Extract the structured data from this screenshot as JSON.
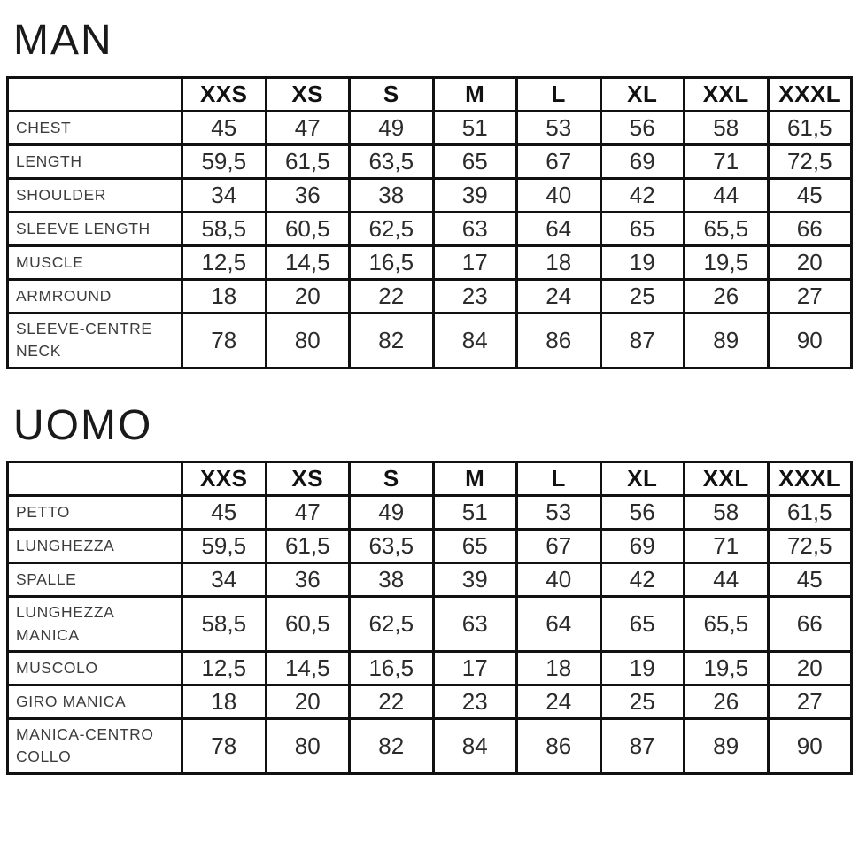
{
  "sizes": [
    "XXS",
    "XS",
    "S",
    "M",
    "L",
    "XL",
    "XXL",
    "XXXL"
  ],
  "tables": [
    {
      "title": "MAN",
      "rows": [
        {
          "label": "CHEST",
          "values": [
            "45",
            "47",
            "49",
            "51",
            "53",
            "56",
            "58",
            "61,5"
          ]
        },
        {
          "label": "LENGTH",
          "values": [
            "59,5",
            "61,5",
            "63,5",
            "65",
            "67",
            "69",
            "71",
            "72,5"
          ]
        },
        {
          "label": "SHOULDER",
          "values": [
            "34",
            "36",
            "38",
            "39",
            "40",
            "42",
            "44",
            "45"
          ]
        },
        {
          "label": "SLEEVE LENGTH",
          "values": [
            "58,5",
            "60,5",
            "62,5",
            "63",
            "64",
            "65",
            "65,5",
            "66"
          ]
        },
        {
          "label": "MUSCLE",
          "values": [
            "12,5",
            "14,5",
            "16,5",
            "17",
            "18",
            "19",
            "19,5",
            "20"
          ]
        },
        {
          "label": "ARMROUND",
          "values": [
            "18",
            "20",
            "22",
            "23",
            "24",
            "25",
            "26",
            "27"
          ]
        },
        {
          "label": "SLEEVE-CENTRE\nNECK",
          "values": [
            "78",
            "80",
            "82",
            "84",
            "86",
            "87",
            "89",
            "90"
          ]
        }
      ]
    },
    {
      "title": "UOMO",
      "rows": [
        {
          "label": "PETTO",
          "values": [
            "45",
            "47",
            "49",
            "51",
            "53",
            "56",
            "58",
            "61,5"
          ]
        },
        {
          "label": "LUNGHEZZA",
          "values": [
            "59,5",
            "61,5",
            "63,5",
            "65",
            "67",
            "69",
            "71",
            "72,5"
          ]
        },
        {
          "label": "SPALLE",
          "values": [
            "34",
            "36",
            "38",
            "39",
            "40",
            "42",
            "44",
            "45"
          ]
        },
        {
          "label": "LUNGHEZZA\nMANICA",
          "values": [
            "58,5",
            "60,5",
            "62,5",
            "63",
            "64",
            "65",
            "65,5",
            "66"
          ]
        },
        {
          "label": "MUSCOLO",
          "values": [
            "12,5",
            "14,5",
            "16,5",
            "17",
            "18",
            "19",
            "19,5",
            "20"
          ]
        },
        {
          "label": "GIRO MANICA",
          "values": [
            "18",
            "20",
            "22",
            "23",
            "24",
            "25",
            "26",
            "27"
          ]
        },
        {
          "label": "MANICA-CENTRO\nCOLLO",
          "values": [
            "78",
            "80",
            "82",
            "84",
            "86",
            "87",
            "89",
            "90"
          ]
        }
      ]
    }
  ]
}
